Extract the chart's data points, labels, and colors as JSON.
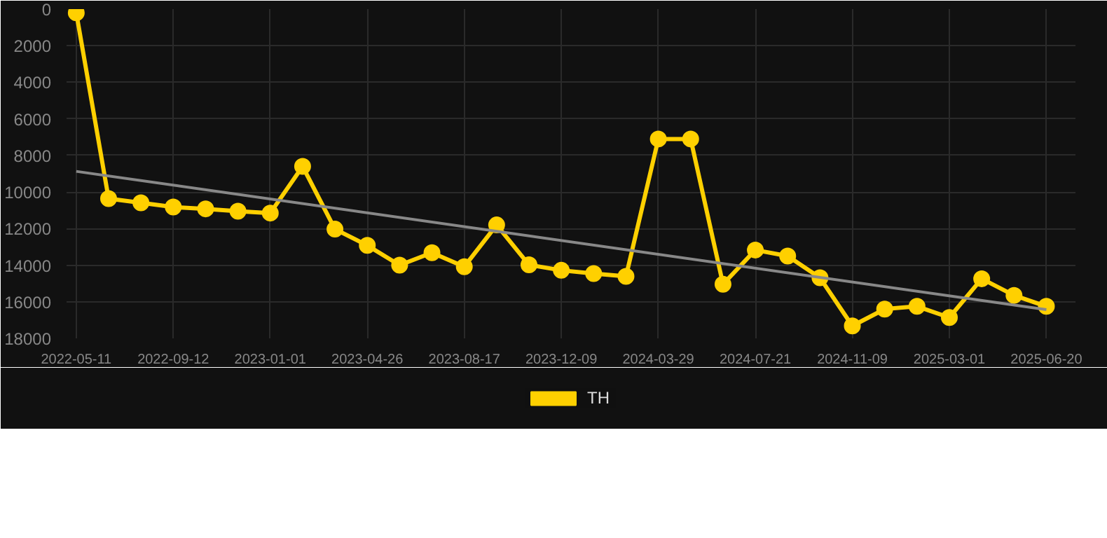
{
  "chart_data": {
    "type": "line",
    "categories": [
      "2022-05-11",
      null,
      null,
      "2022-09-12",
      null,
      null,
      "2023-01-01",
      null,
      null,
      "2023-04-26",
      null,
      null,
      "2023-08-17",
      null,
      null,
      "2023-12-09",
      null,
      null,
      "2024-03-29",
      null,
      null,
      "2024-07-21",
      null,
      null,
      "2024-11-09",
      null,
      null,
      "2025-03-01",
      null,
      null,
      "2025-06-20"
    ],
    "series": [
      {
        "name": "TH",
        "color": "#ffd000",
        "marker": "circle",
        "values": [
          200,
          10360,
          10590,
          10820,
          10920,
          11050,
          11150,
          8600,
          12030,
          12920,
          14000,
          13320,
          14080,
          11800,
          13980,
          14280,
          14460,
          14610,
          7100,
          7100,
          15040,
          13170,
          13500,
          14690,
          17320,
          16400,
          16250,
          16860,
          14740,
          15650,
          16250
        ]
      },
      {
        "type": "line",
        "color": "#888888",
        "marker": "none",
        "values": [
          8870,
          null,
          null,
          null,
          null,
          null,
          null,
          null,
          null,
          null,
          null,
          null,
          null,
          null,
          null,
          null,
          null,
          null,
          null,
          null,
          null,
          null,
          null,
          null,
          null,
          null,
          null,
          null,
          null,
          null,
          16430
        ]
      }
    ],
    "ylim": [
      18000,
      0
    ],
    "yticks": [
      0,
      2000,
      4000,
      6000,
      8000,
      10000,
      12000,
      14000,
      16000,
      18000
    ],
    "grid": true,
    "legend": "bottom"
  }
}
